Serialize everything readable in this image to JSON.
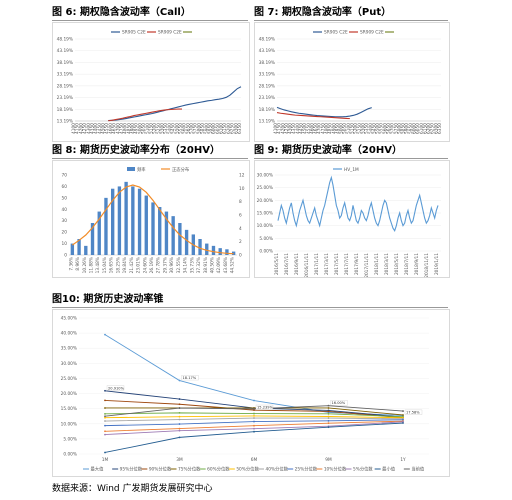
{
  "titles": {
    "fig6": "图 6: 期权隐含波动率（Call）",
    "fig7": "图 7: 期权隐含波动率（Put）",
    "fig8": "图 8: 期货历史波动率分布（20HV）",
    "fig9": "图 9: 期货历史波动率（20HV）",
    "fig10": "图10: 期货历史波动率锥"
  },
  "footer": "数据来源：Wind 广发期货发展研究中心",
  "colors": {
    "blue": "#2e5a94",
    "red": "#c0392b",
    "olive": "#7a8a2e",
    "purple": "#7b52a0",
    "orange": "#f28c28",
    "bar": "#4f86c6",
    "hv": "#5b9bd5"
  },
  "chart_data": [
    {
      "type": "line",
      "title": "图 6: 期权隐含波动率（Call）",
      "x": [
        "4100",
        "4150",
        "4200",
        "4250",
        "4300",
        "4350",
        "4400",
        "4450",
        "4500",
        "4550",
        "4600",
        "4650",
        "4700",
        "4750",
        "4800",
        "4850",
        "4900",
        "4950",
        "5000",
        "5050",
        "5100",
        "5150",
        "5200",
        "5250",
        "5300",
        "5350",
        "5400",
        "5450",
        "5500",
        "5550",
        "5600",
        "5650",
        "5700",
        "5750",
        "5800",
        "5850",
        "5900",
        "5950",
        "6000",
        "6050",
        "6100",
        "6150",
        "6200",
        "6250",
        "6300",
        "6350"
      ],
      "yticks": [
        "13.19%",
        "18.19%",
        "23.19%",
        "28.19%",
        "33.19%",
        "38.19%",
        "43.19%",
        "48.19%"
      ],
      "ylim": [
        13.19,
        48.19
      ],
      "legend": [
        "SR905 C2E",
        "SR909 C2E",
        ""
      ],
      "series": [
        {
          "name": "SR905 C2E",
          "values": [
            null,
            null,
            null,
            null,
            null,
            null,
            null,
            null,
            null,
            13.4,
            13.5,
            13.6,
            13.8,
            14.0,
            14.3,
            14.6,
            14.9,
            15.2,
            15.5,
            15.8,
            16.1,
            16.4,
            16.8,
            17.2,
            17.6,
            18.0,
            18.4,
            18.8,
            19.2,
            19.6,
            20.0,
            20.3,
            20.6,
            20.9,
            21.2,
            21.5,
            21.8,
            22.0,
            22.3,
            22.5,
            22.8,
            23.3,
            24.2,
            25.6,
            27.0,
            27.8
          ]
        },
        {
          "name": "SR909 C2E",
          "values": [
            null,
            null,
            null,
            null,
            null,
            null,
            null,
            null,
            null,
            13.3,
            13.5,
            13.8,
            14.1,
            14.4,
            14.8,
            15.1,
            15.5,
            15.8,
            16.1,
            16.4,
            16.7,
            17.0,
            17.3,
            17.6,
            17.8,
            18.0,
            18.1,
            18.2,
            18.3,
            18.3,
            null,
            null,
            null,
            null,
            null,
            null,
            null,
            null,
            null,
            null,
            null,
            null,
            null,
            null,
            null,
            null
          ]
        }
      ]
    },
    {
      "type": "line",
      "title": "图 7: 期权隐含波动率（Put）",
      "x": [
        "4100",
        "4150",
        "4200",
        "4250",
        "4300",
        "4350",
        "4400",
        "4450",
        "4500",
        "4550",
        "4600",
        "4650",
        "4700",
        "4750",
        "4800",
        "4850",
        "4900",
        "4950",
        "5000",
        "5050",
        "5100",
        "5150",
        "5200",
        "5250",
        "5300",
        "5350",
        "5400",
        "5450",
        "5500",
        "5550",
        "5600",
        "5650",
        "5700",
        "5750",
        "5800",
        "5850",
        "5900",
        "5950",
        "6000",
        "6050",
        "6100",
        "6150",
        "6200",
        "6250",
        "6300",
        "6350"
      ],
      "yticks": [
        "13.19%",
        "18.19%",
        "23.19%",
        "28.19%",
        "33.19%",
        "38.19%",
        "43.19%",
        "48.19%"
      ],
      "ylim": [
        13.19,
        48.19
      ],
      "legend": [
        "SR905 C2E",
        "SR909 C2E",
        ""
      ],
      "series": [
        {
          "name": "SR905 C2E",
          "values": [
            19.0,
            18.4,
            17.9,
            17.5,
            17.1,
            16.8,
            16.5,
            16.3,
            16.1,
            15.9,
            15.7,
            15.5,
            15.4,
            15.3,
            15.2,
            15.1,
            15.0,
            15.0,
            15.0,
            15.1,
            15.3,
            15.6,
            16.1,
            16.8,
            17.6,
            18.4,
            18.9,
            null,
            null,
            null,
            null,
            null,
            null,
            null,
            null,
            null,
            null,
            null,
            null,
            null,
            null,
            null,
            null,
            null,
            null,
            null
          ]
        },
        {
          "name": "SR909 C2E",
          "values": [
            16.8,
            16.5,
            16.3,
            16.1,
            15.9,
            15.7,
            15.6,
            15.5,
            15.4,
            15.3,
            15.2,
            15.1,
            15.0,
            14.9,
            14.8,
            14.7,
            14.6,
            14.5,
            14.4,
            14.3,
            14.2,
            null,
            null,
            null,
            null,
            null,
            null,
            null,
            null,
            null,
            null,
            null,
            null,
            null,
            null,
            null,
            null,
            null,
            null,
            null,
            null,
            null,
            null,
            null,
            null,
            null
          ]
        }
      ]
    },
    {
      "type": "bar",
      "title": "图 8: 期货历史波动率分布（20HV）",
      "categories": [
        "7.36%",
        "8.96%",
        "10.26%",
        "11.88%",
        "13.48%",
        "15.04%",
        "16.65%",
        "18.25%",
        "19.84%",
        "21.42%",
        "23.01%",
        "24.60%",
        "26.19%",
        "27.78%",
        "29.37%",
        "30.96%",
        "32.55%",
        "34.14%",
        "35.73%",
        "37.32%",
        "38.91%",
        "40.50%",
        "42.09%",
        "43.68%",
        "44.52%"
      ],
      "legend": [
        "频率",
        "正态分布"
      ],
      "y_left_ticks": [
        "0",
        "10",
        "20",
        "30",
        "40",
        "50",
        "60",
        "70"
      ],
      "y_right_ticks": [
        "0",
        "2",
        "4",
        "6",
        "8",
        "10",
        "12"
      ],
      "ylim_left": [
        0,
        70
      ],
      "ylim_right": [
        0,
        12
      ],
      "values": [
        10,
        14,
        8,
        28,
        38,
        50,
        58,
        60,
        64,
        60,
        58,
        52,
        46,
        42,
        38,
        34,
        28,
        22,
        18,
        14,
        10,
        8,
        6,
        5,
        3
      ],
      "normal_curve": [
        1.5,
        2.2,
        3.0,
        4.1,
        5.4,
        6.8,
        8.2,
        9.4,
        10.2,
        10.5,
        10.2,
        9.4,
        8.2,
        6.8,
        5.4,
        4.1,
        3.0,
        2.2,
        1.5,
        1.0,
        0.7,
        0.5,
        0.35,
        0.25,
        0.2
      ]
    },
    {
      "type": "line",
      "title": "图 9: 期货历史波动率（20HV）",
      "legend": [
        "HV_1M"
      ],
      "x_ticks": [
        "2016/5/11",
        "2016/7/11",
        "2016/9/11",
        "2016/11/11",
        "2017/1/11",
        "2017/3/11",
        "2017/5/11",
        "2017/7/11",
        "2017/9/11",
        "2017/11/11",
        "2018/1/11",
        "2018/3/11",
        "2018/5/11",
        "2018/7/11",
        "2018/9/11",
        "2018/11/11",
        "2019/1/11"
      ],
      "yticks": [
        "0.00%",
        "5.00%",
        "10.00%",
        "15.00%",
        "20.00%",
        "25.00%",
        "30.00%"
      ],
      "ylim": [
        0,
        30
      ],
      "values": [
        12,
        15,
        18,
        16,
        13,
        11,
        14,
        17,
        19,
        15,
        12,
        10,
        13,
        16,
        18,
        20,
        17,
        14,
        12,
        11,
        13,
        15,
        17,
        14,
        12,
        10,
        13,
        16,
        18,
        21,
        24,
        27,
        29,
        26,
        22,
        18,
        16,
        13,
        14,
        17,
        19,
        16,
        13,
        12,
        14,
        18,
        15,
        12,
        11,
        13,
        16,
        15,
        13,
        12,
        14,
        17,
        19,
        16,
        13,
        11,
        10,
        12,
        15,
        18,
        20,
        19,
        16,
        13,
        11,
        9,
        8,
        10,
        13,
        15,
        12,
        10,
        11,
        14,
        16,
        13,
        11,
        12,
        15,
        18,
        20,
        22,
        19,
        16,
        13,
        11,
        12,
        14,
        17,
        15,
        13,
        16,
        18
      ]
    },
    {
      "type": "line",
      "title": "图10: 期货历史波动率锥",
      "x": [
        "1M",
        "3M",
        "6M",
        "9M",
        "1Y"
      ],
      "yticks": [
        "0.00%",
        "5.00%",
        "10.00%",
        "15.00%",
        "20.00%",
        "25.00%",
        "30.00%",
        "35.00%",
        "40.00%",
        "45.00%"
      ],
      "ylim": [
        0,
        45
      ],
      "legend": [
        "最大值",
        "95%分位数",
        "90%分位数",
        "75%分位数",
        "60%分位数",
        "50%分位数",
        "40%分位数",
        "25%分位数",
        "10%分位数",
        "5%分位数",
        "最小值",
        "当前值"
      ],
      "series": [
        {
          "name": "最大值",
          "values": [
            39.51,
            24.31,
            17.7,
            13.77,
            12.74
          ]
        },
        {
          "name": "95%分位数",
          "values": [
            20.91,
            18.17,
            15.2,
            14.42,
            12.19
          ]
        },
        {
          "name": "90%分位数",
          "values": [
            17.74,
            16.46,
            14.52,
            14.07,
            12.0
          ]
        },
        {
          "name": "75%分位数",
          "values": [
            15.23,
            15.23,
            15.23,
            15.23,
            12.9
          ]
        },
        {
          "name": "60%分位数",
          "values": [
            13.28,
            13.61,
            13.38,
            13.28,
            12.33
          ]
        },
        {
          "name": "50%分位数",
          "values": [
            12.01,
            12.35,
            12.61,
            12.41,
            11.99
          ]
        },
        {
          "name": "40%分位数",
          "values": [
            10.9,
            11.41,
            11.89,
            11.88,
            11.63
          ]
        },
        {
          "name": "25%分位数",
          "values": [
            9.39,
            9.91,
            10.73,
            10.97,
            11.32
          ]
        },
        {
          "name": "10%分位数",
          "values": [
            7.52,
            8.4,
            9.36,
            10.2,
            10.87
          ]
        },
        {
          "name": "5%分位数",
          "values": [
            6.42,
            7.72,
            8.37,
            9.19,
            10.65
          ]
        },
        {
          "name": "最小值",
          "values": [
            0.5,
            5.5,
            7.38,
            8.88,
            10.25
          ]
        },
        {
          "name": "当前值",
          "values": [
            12.5,
            15.2,
            14.93,
            16.0,
            14.2
          ]
        }
      ],
      "data_labels": [
        "20.910%",
        "18.17%",
        "15.239%",
        "16.00%",
        "17.58%"
      ]
    }
  ]
}
